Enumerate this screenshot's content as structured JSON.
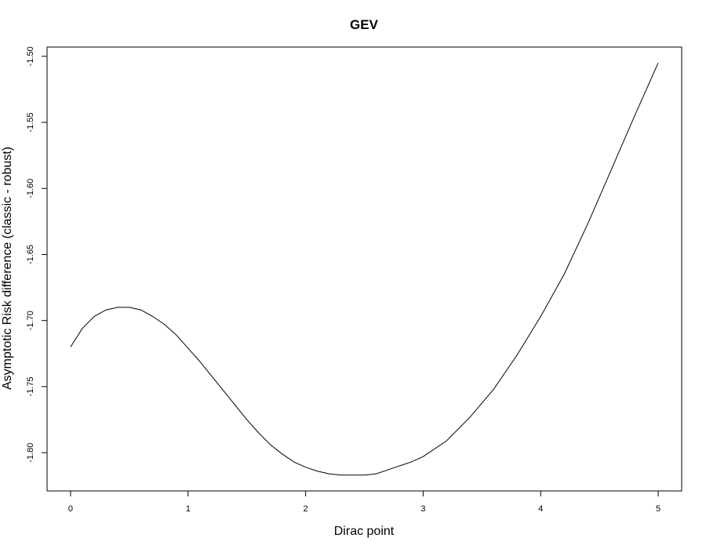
{
  "chart_data": {
    "type": "line",
    "title": "GEV",
    "xlabel": "Dirac point",
    "ylabel": "Asymptotic Risk difference (classic - robust)",
    "xlim": [
      -0.2,
      5.2
    ],
    "ylim": [
      -1.829,
      -1.493
    ],
    "xticks": [
      0,
      1,
      2,
      3,
      4,
      5
    ],
    "xtick_labels": [
      "0",
      "1",
      "2",
      "3",
      "4",
      "5"
    ],
    "yticks": [
      -1.8,
      -1.75,
      -1.7,
      -1.65,
      -1.6,
      -1.55,
      -1.5
    ],
    "ytick_labels": [
      "-1.80",
      "-1.75",
      "-1.70",
      "-1.65",
      "-1.60",
      "-1.55",
      "-1.50"
    ],
    "grid": false,
    "legend": "none",
    "line_color": "#000000",
    "series": [
      {
        "x": [
          0.0,
          0.1,
          0.2,
          0.3,
          0.4,
          0.5,
          0.6,
          0.7,
          0.8,
          0.9,
          1.0,
          1.1,
          1.2,
          1.3,
          1.4,
          1.5,
          1.6,
          1.7,
          1.8,
          1.9,
          2.0,
          2.1,
          2.2,
          2.3,
          2.4,
          2.5,
          2.6,
          2.7,
          2.8,
          2.9,
          3.0,
          3.2,
          3.4,
          3.6,
          3.8,
          4.0,
          4.2,
          4.4,
          4.6,
          4.8,
          5.0
        ],
        "y": [
          -1.72,
          -1.706,
          -1.697,
          -1.692,
          -1.69,
          -1.69,
          -1.692,
          -1.697,
          -1.703,
          -1.711,
          -1.721,
          -1.731,
          -1.742,
          -1.753,
          -1.764,
          -1.775,
          -1.785,
          -1.794,
          -1.801,
          -1.807,
          -1.811,
          -1.814,
          -1.816,
          -1.817,
          -1.817,
          -1.817,
          -1.816,
          -1.813,
          -1.81,
          -1.807,
          -1.803,
          -1.791,
          -1.773,
          -1.752,
          -1.726,
          -1.697,
          -1.665,
          -1.627,
          -1.586,
          -1.545,
          -1.505
        ]
      }
    ]
  }
}
